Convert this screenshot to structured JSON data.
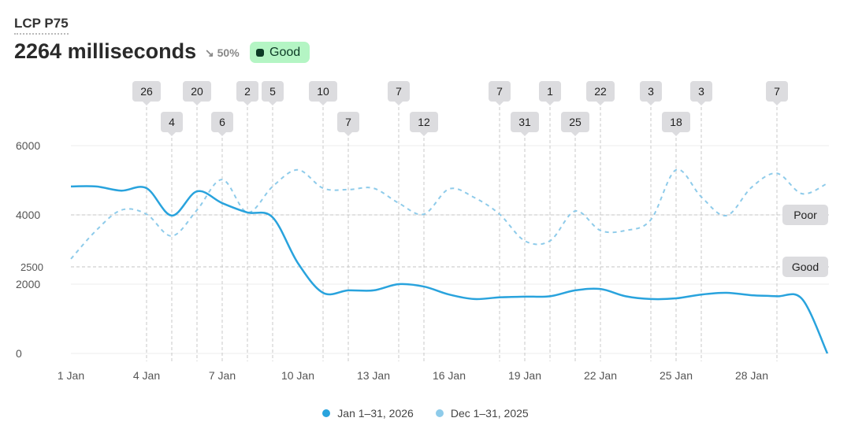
{
  "header": {
    "title": "LCP P75",
    "value": "2264 milliseconds",
    "delta_icon": "arrow-down-right-icon",
    "delta": "50%",
    "status": "Good",
    "status_color": "#b4f5c4"
  },
  "chart_data": {
    "type": "line",
    "x": [
      "1 Jan",
      "2 Jan",
      "3 Jan",
      "4 Jan",
      "5 Jan",
      "6 Jan",
      "7 Jan",
      "8 Jan",
      "9 Jan",
      "10 Jan",
      "11 Jan",
      "12 Jan",
      "13 Jan",
      "14 Jan",
      "15 Jan",
      "16 Jan",
      "17 Jan",
      "18 Jan",
      "19 Jan",
      "20 Jan",
      "21 Jan",
      "22 Jan",
      "23 Jan",
      "24 Jan",
      "25 Jan",
      "26 Jan",
      "27 Jan",
      "28 Jan",
      "29 Jan",
      "30 Jan",
      "31 Jan"
    ],
    "x_tick_labels": [
      "1 Jan",
      "4 Jan",
      "7 Jan",
      "10 Jan",
      "13 Jan",
      "16 Jan",
      "19 Jan",
      "22 Jan",
      "25 Jan",
      "28 Jan"
    ],
    "y_tick_labels": [
      "0",
      "2000",
      "2500",
      "4000",
      "6000"
    ],
    "ylim": [
      0,
      6000
    ],
    "grid": true,
    "legend": "bottom",
    "series": [
      {
        "name": "Jan 1–31, 2026",
        "color": "#29a3dd",
        "style": "solid",
        "values": [
          4820,
          4820,
          4700,
          4770,
          3980,
          4680,
          4340,
          4070,
          3930,
          2610,
          1750,
          1820,
          1820,
          2000,
          1930,
          1700,
          1570,
          1620,
          1640,
          1650,
          1820,
          1860,
          1650,
          1570,
          1590,
          1700,
          1750,
          1680,
          1650,
          1570,
          0
        ]
      },
      {
        "name": "Dec 1–31, 2025",
        "color": "#8ecbea",
        "style": "dashed",
        "values": [
          2730,
          3550,
          4140,
          4020,
          3390,
          4140,
          5020,
          4070,
          4820,
          5300,
          4770,
          4730,
          4770,
          4340,
          4020,
          4750,
          4500,
          4020,
          3250,
          3250,
          4110,
          3550,
          3550,
          3860,
          5300,
          4520,
          3980,
          4800,
          5200,
          4610,
          4910
        ]
      }
    ],
    "thresholds": [
      {
        "label": "Poor",
        "value": 4000
      },
      {
        "label": "Good",
        "value": 2500
      }
    ],
    "annotations": [
      {
        "day": 4,
        "label": "26",
        "row": 1
      },
      {
        "day": 5,
        "label": "4",
        "row": 2
      },
      {
        "day": 6,
        "label": "20",
        "row": 1
      },
      {
        "day": 7,
        "label": "6",
        "row": 2
      },
      {
        "day": 8,
        "label": "2",
        "row": 1
      },
      {
        "day": 9,
        "label": "5",
        "row": 1
      },
      {
        "day": 11,
        "label": "10",
        "row": 1
      },
      {
        "day": 12,
        "label": "7",
        "row": 2
      },
      {
        "day": 14,
        "label": "7",
        "row": 1
      },
      {
        "day": 15,
        "label": "12",
        "row": 2
      },
      {
        "day": 18,
        "label": "7",
        "row": 1
      },
      {
        "day": 19,
        "label": "31",
        "row": 2
      },
      {
        "day": 20,
        "label": "1",
        "row": 1
      },
      {
        "day": 21,
        "label": "25",
        "row": 2
      },
      {
        "day": 22,
        "label": "22",
        "row": 1
      },
      {
        "day": 24,
        "label": "3",
        "row": 1
      },
      {
        "day": 25,
        "label": "18",
        "row": 2
      },
      {
        "day": 26,
        "label": "3",
        "row": 1
      },
      {
        "day": 29,
        "label": "7",
        "row": 1
      }
    ]
  }
}
